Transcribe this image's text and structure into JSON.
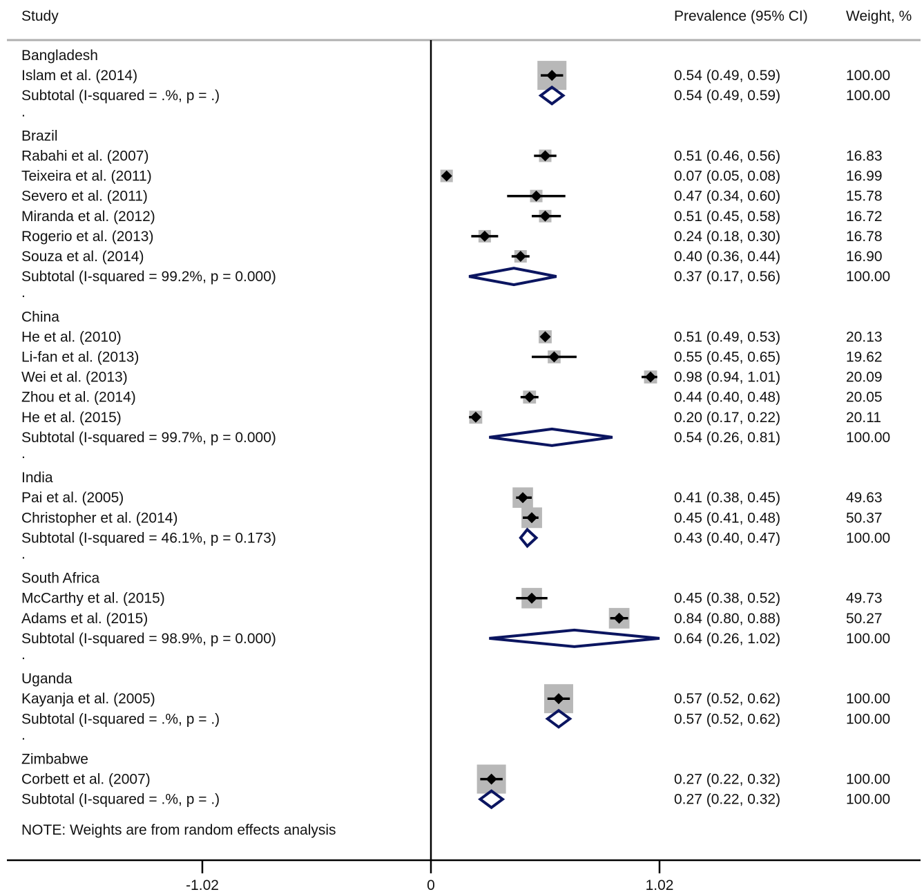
{
  "header": {
    "study": "Study",
    "prevalence": "Prevalence (95% CI)",
    "weight": "Weight, %"
  },
  "note": "NOTE: Weights are from random effects analysis",
  "colors": {
    "study_marker": "#000000",
    "study_box": "#b8b8b8",
    "diamond": "#0b1560",
    "axis": "#000000"
  },
  "chart_data": {
    "type": "forest",
    "x_axis": {
      "ticks": [
        -1.02,
        0,
        1.02
      ],
      "tick_labels": [
        "-1.02",
        "0",
        "1.02"
      ],
      "xlim": [
        -1.02,
        1.02
      ]
    },
    "groups": [
      {
        "name": "Bangladesh",
        "studies": [
          {
            "label": "Islam et al. (2014)",
            "est": 0.54,
            "lo": 0.49,
            "hi": 0.59,
            "ci_text": "0.54 (0.49, 0.59)",
            "weight": "100.00"
          }
        ],
        "subtotal": {
          "label": "Subtotal  (I-squared = .%, p = .)",
          "est": 0.54,
          "lo": 0.49,
          "hi": 0.59,
          "ci_text": "0.54 (0.49, 0.59)",
          "weight": "100.00"
        }
      },
      {
        "name": "Brazil",
        "studies": [
          {
            "label": "Rabahi et al. (2007)",
            "est": 0.51,
            "lo": 0.46,
            "hi": 0.56,
            "ci_text": "0.51 (0.46, 0.56)",
            "weight": "16.83"
          },
          {
            "label": "Teixeira et al. (2011)",
            "est": 0.07,
            "lo": 0.05,
            "hi": 0.08,
            "ci_text": "0.07 (0.05, 0.08)",
            "weight": "16.99"
          },
          {
            "label": "Severo et al. (2011)",
            "est": 0.47,
            "lo": 0.34,
            "hi": 0.6,
            "ci_text": "0.47 (0.34, 0.60)",
            "weight": "15.78"
          },
          {
            "label": "Miranda et al. (2012)",
            "est": 0.51,
            "lo": 0.45,
            "hi": 0.58,
            "ci_text": "0.51 (0.45, 0.58)",
            "weight": "16.72"
          },
          {
            "label": "Rogerio et al. (2013)",
            "est": 0.24,
            "lo": 0.18,
            "hi": 0.3,
            "ci_text": "0.24 (0.18, 0.30)",
            "weight": "16.78"
          },
          {
            "label": "Souza et al. (2014)",
            "est": 0.4,
            "lo": 0.36,
            "hi": 0.44,
            "ci_text": "0.40 (0.36, 0.44)",
            "weight": "16.90"
          }
        ],
        "subtotal": {
          "label": "Subtotal  (I-squared = 99.2%, p = 0.000)",
          "est": 0.37,
          "lo": 0.17,
          "hi": 0.56,
          "ci_text": "0.37 (0.17, 0.56)",
          "weight": "100.00"
        }
      },
      {
        "name": "China",
        "studies": [
          {
            "label": "He et al. (2010)",
            "est": 0.51,
            "lo": 0.49,
            "hi": 0.53,
            "ci_text": "0.51 (0.49, 0.53)",
            "weight": "20.13"
          },
          {
            "label": "Li-fan et al. (2013)",
            "est": 0.55,
            "lo": 0.45,
            "hi": 0.65,
            "ci_text": "0.55 (0.45, 0.65)",
            "weight": "19.62"
          },
          {
            "label": "Wei et al. (2013)",
            "est": 0.98,
            "lo": 0.94,
            "hi": 1.01,
            "ci_text": "0.98 (0.94, 1.01)",
            "weight": "20.09"
          },
          {
            "label": "Zhou et al. (2014)",
            "est": 0.44,
            "lo": 0.4,
            "hi": 0.48,
            "ci_text": "0.44 (0.40, 0.48)",
            "weight": "20.05"
          },
          {
            "label": "He et al. (2015)",
            "est": 0.2,
            "lo": 0.17,
            "hi": 0.22,
            "ci_text": "0.20 (0.17, 0.22)",
            "weight": "20.11"
          }
        ],
        "subtotal": {
          "label": "Subtotal  (I-squared = 99.7%, p = 0.000)",
          "est": 0.54,
          "lo": 0.26,
          "hi": 0.81,
          "ci_text": "0.54 (0.26, 0.81)",
          "weight": "100.00"
        }
      },
      {
        "name": "India",
        "studies": [
          {
            "label": "Pai et al. (2005)",
            "est": 0.41,
            "lo": 0.38,
            "hi": 0.45,
            "ci_text": "0.41 (0.38, 0.45)",
            "weight": "49.63"
          },
          {
            "label": "Christopher et al. (2014)",
            "est": 0.45,
            "lo": 0.41,
            "hi": 0.48,
            "ci_text": "0.45 (0.41, 0.48)",
            "weight": "50.37"
          }
        ],
        "subtotal": {
          "label": "Subtotal  (I-squared = 46.1%, p = 0.173)",
          "est": 0.43,
          "lo": 0.4,
          "hi": 0.47,
          "ci_text": "0.43 (0.40, 0.47)",
          "weight": "100.00"
        }
      },
      {
        "name": "South Africa",
        "studies": [
          {
            "label": "McCarthy et al. (2015)",
            "est": 0.45,
            "lo": 0.38,
            "hi": 0.52,
            "ci_text": "0.45 (0.38, 0.52)",
            "weight": "49.73"
          },
          {
            "label": "Adams et al. (2015)",
            "est": 0.84,
            "lo": 0.8,
            "hi": 0.88,
            "ci_text": "0.84 (0.80, 0.88)",
            "weight": "50.27"
          }
        ],
        "subtotal": {
          "label": "Subtotal  (I-squared = 98.9%, p = 0.000)",
          "est": 0.64,
          "lo": 0.26,
          "hi": 1.02,
          "ci_text": "0.64 (0.26, 1.02)",
          "weight": "100.00"
        }
      },
      {
        "name": "Uganda",
        "studies": [
          {
            "label": "Kayanja et al. (2005)",
            "est": 0.57,
            "lo": 0.52,
            "hi": 0.62,
            "ci_text": "0.57 (0.52, 0.62)",
            "weight": "100.00"
          }
        ],
        "subtotal": {
          "label": "Subtotal  (I-squared = .%, p = .)",
          "est": 0.57,
          "lo": 0.52,
          "hi": 0.62,
          "ci_text": "0.57 (0.52, 0.62)",
          "weight": "100.00"
        }
      },
      {
        "name": "Zimbabwe",
        "studies": [
          {
            "label": "Corbett et al. (2007)",
            "est": 0.27,
            "lo": 0.22,
            "hi": 0.32,
            "ci_text": "0.27 (0.22, 0.32)",
            "weight": "100.00"
          }
        ],
        "subtotal": {
          "label": "Subtotal  (I-squared = .%, p = .)",
          "est": 0.27,
          "lo": 0.22,
          "hi": 0.32,
          "ci_text": "0.27 (0.22, 0.32)",
          "weight": "100.00"
        }
      }
    ],
    "group_separator": "."
  }
}
